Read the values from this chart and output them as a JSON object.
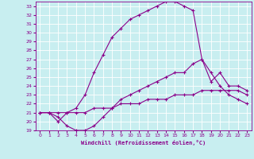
{
  "xlabel": "Windchill (Refroidissement éolien,°C)",
  "bg_color": "#c8eef0",
  "grid_color": "#ffffff",
  "line_color": "#8b008b",
  "xlim": [
    -0.5,
    23.5
  ],
  "ylim": [
    19,
    33.5
  ],
  "xticks": [
    0,
    1,
    2,
    3,
    4,
    5,
    6,
    7,
    8,
    9,
    10,
    11,
    12,
    13,
    14,
    15,
    16,
    17,
    18,
    19,
    20,
    21,
    22,
    23
  ],
  "yticks": [
    19,
    20,
    21,
    22,
    23,
    24,
    25,
    26,
    27,
    28,
    29,
    30,
    31,
    32,
    33
  ],
  "curve_top_x": [
    0,
    1,
    2,
    3,
    4,
    5,
    6,
    7,
    8,
    9,
    10,
    11,
    12,
    13,
    14,
    15,
    16,
    17,
    18,
    19,
    20,
    21,
    22,
    23
  ],
  "curve_top_y": [
    21,
    21,
    20,
    21,
    21.5,
    23,
    25.5,
    27.5,
    29.5,
    30.5,
    31.5,
    32,
    32.5,
    33,
    33.5,
    33.5,
    33,
    32.5,
    27,
    25.5,
    24,
    23,
    22.5,
    22
  ],
  "curve_mid_x": [
    0,
    1,
    2,
    3,
    4,
    5,
    6,
    7,
    8,
    9,
    10,
    11,
    12,
    13,
    14,
    15,
    16,
    17,
    18,
    19,
    20,
    21,
    22,
    23
  ],
  "curve_mid_y": [
    21,
    21,
    20.5,
    19.5,
    19,
    19,
    19.5,
    20.5,
    21.5,
    22.5,
    23,
    23.5,
    24,
    24.5,
    25,
    25.5,
    25.5,
    26.5,
    27,
    24.5,
    25.5,
    24,
    24,
    23.5
  ],
  "curve_bot_x": [
    0,
    1,
    2,
    3,
    4,
    5,
    6,
    7,
    8,
    9,
    10,
    11,
    12,
    13,
    14,
    15,
    16,
    17,
    18,
    19,
    20,
    21,
    22,
    23
  ],
  "curve_bot_y": [
    21,
    21,
    21,
    21,
    21,
    21,
    21.5,
    21.5,
    21.5,
    22,
    22,
    22,
    22.5,
    22.5,
    22.5,
    23,
    23,
    23,
    23.5,
    23.5,
    23.5,
    23.5,
    23.5,
    23
  ]
}
